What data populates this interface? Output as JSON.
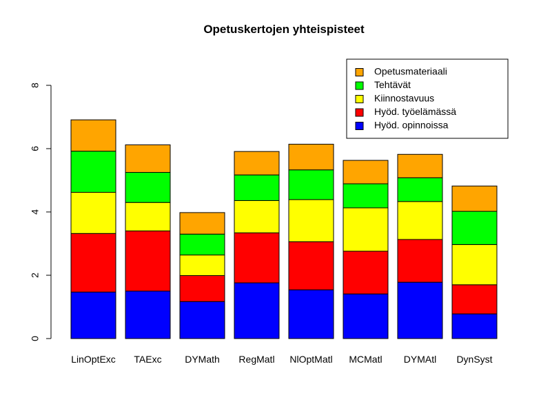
{
  "chart_data": {
    "type": "bar",
    "stacked": true,
    "title": "Opetuskertojen yhteispisteet",
    "xlabel": "",
    "ylabel": "",
    "ylim": [
      0,
      8
    ],
    "yticks": [
      0,
      2,
      4,
      6,
      8
    ],
    "grid": false,
    "legend_position": "top-right",
    "categories": [
      "LinOptExc",
      "TAExc",
      "DYMath",
      "RegMatl",
      "NlOptMatl",
      "MCMatl",
      "DYMAtl",
      "DynSyst"
    ],
    "series": [
      {
        "name": "Hyöd. opinnoissa",
        "color": "#0000ff",
        "values": [
          1.47,
          1.5,
          1.17,
          1.76,
          1.54,
          1.41,
          1.78,
          0.78
        ]
      },
      {
        "name": "Hyöd. työelämässä",
        "color": "#ff0000",
        "values": [
          1.85,
          1.9,
          0.82,
          1.58,
          1.52,
          1.35,
          1.35,
          0.92
        ]
      },
      {
        "name": "Kiinnostavuus",
        "color": "#ffff00",
        "values": [
          1.3,
          0.9,
          0.65,
          1.02,
          1.33,
          1.37,
          1.2,
          1.27
        ]
      },
      {
        "name": "Tehtävät",
        "color": "#00ff00",
        "values": [
          1.3,
          0.95,
          0.66,
          0.81,
          0.94,
          0.76,
          0.75,
          1.05
        ]
      },
      {
        "name": "Opetusmateriaali",
        "color": "#ffa500",
        "values": [
          0.99,
          0.87,
          0.68,
          0.74,
          0.81,
          0.74,
          0.74,
          0.8
        ]
      }
    ],
    "legend_order": [
      "Opetusmateriaali",
      "Tehtävät",
      "Kiinnostavuus",
      "Hyöd. työelämässä",
      "Hyöd. opinnoissa"
    ]
  }
}
